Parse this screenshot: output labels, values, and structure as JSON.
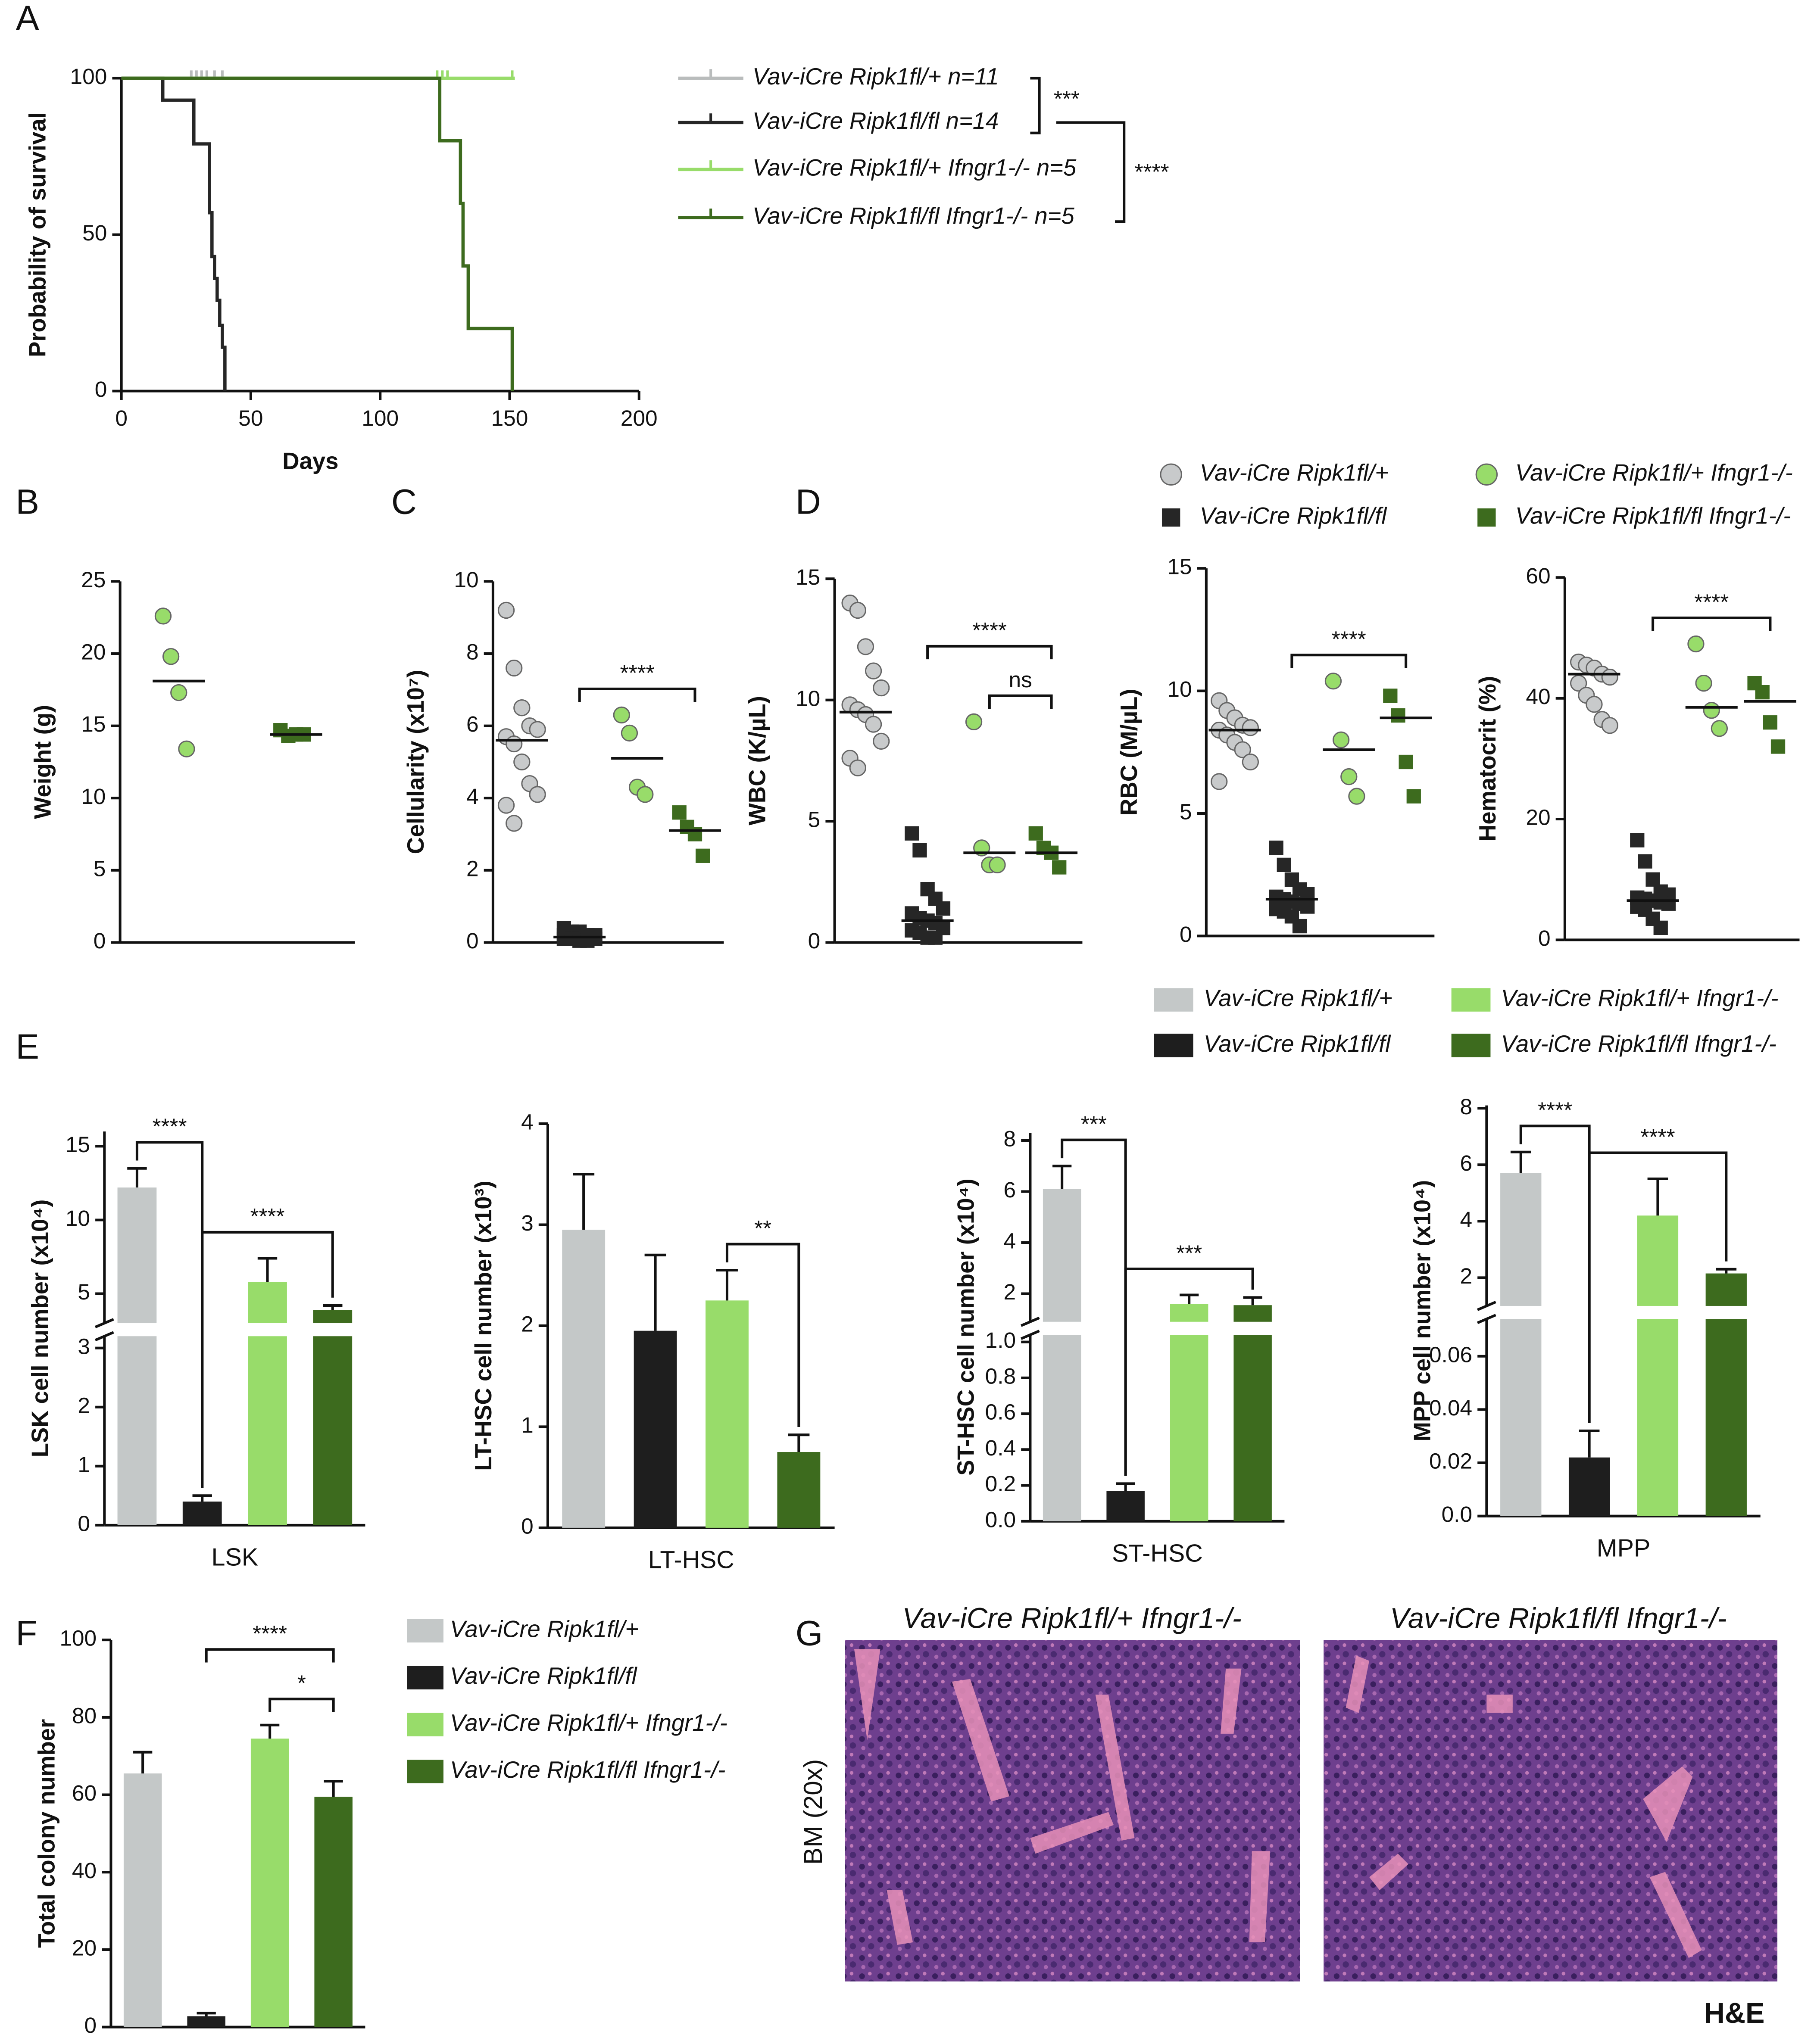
{
  "panel_labels": [
    "A",
    "B",
    "C",
    "D",
    "E",
    "F",
    "G"
  ],
  "dot_legend": [
    {
      "name": "Vav-iCre Ripk1fl/+",
      "color": "#c8cacb",
      "shape": "circle"
    },
    {
      "name": "Vav-iCre Ripk1fl/fl",
      "color": "#262626",
      "shape": "square"
    },
    {
      "name": "Vav-iCre Ripk1fl/+ Ifngr1-/-",
      "color": "#98dc6a",
      "shape": "circle"
    },
    {
      "name": "Vav-iCre Ripk1fl/fl Ifngr1-/-",
      "color": "#3d6b1e",
      "shape": "square"
    }
  ],
  "bar_legend": [
    {
      "name": "Vav-iCre Ripk1fl/+",
      "color": "#c4c8c8"
    },
    {
      "name": "Vav-iCre Ripk1fl/fl",
      "color": "#1e1e1e"
    },
    {
      "name": "Vav-iCre Ripk1fl/+ Ifngr1-/-",
      "color": "#98dc6a"
    },
    {
      "name": "Vav-iCre Ripk1fl/fl Ifngr1-/-",
      "color": "#3d6b1e"
    }
  ],
  "histology": {
    "titles": [
      "Vav-iCre Ripk1fl/+ Ifngr1-/-",
      "Vav-iCre Ripk1fl/fl Ifngr1-/-"
    ],
    "side_label": "BM (20x)",
    "stain": "H&E"
  },
  "chart_data": [
    {
      "type": "survival",
      "xlabel": "Days",
      "ylabel": "Probability of survival",
      "xlim": [
        0,
        200
      ],
      "xticks": [
        0,
        50,
        100,
        150,
        200
      ],
      "ylim": [
        0,
        100
      ],
      "yticks": [
        0,
        50,
        100
      ],
      "series": [
        {
          "name": "Vav-iCre Ripk1fl/+ n=11",
          "color": "#b9bcbc",
          "x": [
            0,
            40
          ],
          "values": [
            100,
            100
          ],
          "censor_x": [
            27,
            29,
            31,
            33,
            36,
            39
          ]
        },
        {
          "name": "Vav-iCre Ripk1fl/fl n=14",
          "color": "#262626",
          "x": [
            0,
            16,
            16,
            28,
            28,
            34,
            34,
            35,
            35,
            36,
            36,
            37,
            37,
            38,
            38,
            39,
            39,
            40,
            40
          ],
          "values": [
            100,
            100,
            93,
            93,
            79,
            79,
            57,
            57,
            43,
            43,
            36,
            36,
            29,
            29,
            21,
            21,
            14,
            14,
            0
          ],
          "censor_x": []
        },
        {
          "name": "Vav-iCre Ripk1fl/+ Ifngr1-/- n=5",
          "color": "#98dc6a",
          "x": [
            0,
            152
          ],
          "values": [
            100,
            100
          ],
          "censor_x": [
            122,
            124,
            126,
            151
          ]
        },
        {
          "name": "Vav-iCre Ripk1fl/fl Ifngr1-/- n=5",
          "color": "#3d6b1e",
          "x": [
            0,
            123,
            123,
            131,
            131,
            132,
            132,
            134,
            134,
            151,
            151
          ],
          "values": [
            100,
            100,
            80,
            80,
            60,
            60,
            40,
            40,
            20,
            20,
            0
          ],
          "censor_x": []
        }
      ],
      "annotations": [
        "***",
        "****"
      ]
    },
    {
      "type": "dot",
      "ylabel": "Weight (g)",
      "ylim": [
        0,
        25
      ],
      "yticks": [
        0,
        5,
        10,
        15,
        20,
        25
      ],
      "series": [
        {
          "color": "#98dc6a",
          "shape": "circle",
          "values": [
            22.6,
            19.8,
            17.3,
            13.4
          ],
          "median": 18.1
        },
        {
          "color": "#3d6b1e",
          "shape": "square",
          "values": [
            14.7,
            14.3,
            14.4,
            14.4
          ],
          "median": 14.4
        }
      ],
      "brackets": []
    },
    {
      "type": "dot",
      "ylabel": "Cellularity (x10⁷)",
      "ylim": [
        0,
        10
      ],
      "yticks": [
        0,
        2,
        4,
        6,
        8,
        10
      ],
      "series": [
        {
          "color": "#c8cacb",
          "shape": "circle",
          "values": [
            9.2,
            7.6,
            6.5,
            6.0,
            5.9,
            5.7,
            5.5,
            5.0,
            4.4,
            4.1,
            3.8,
            3.3
          ],
          "median": 5.6
        },
        {
          "color": "#262626",
          "shape": "square",
          "values": [
            0.4,
            0.3,
            0.3,
            0.2,
            0.2,
            0.2,
            0.1,
            0.1,
            0.1,
            0.1,
            0.1,
            0.1,
            0.05,
            0.05
          ],
          "median": 0.15
        },
        {
          "color": "#98dc6a",
          "shape": "circle",
          "values": [
            6.3,
            5.8,
            4.3,
            4.1
          ],
          "median": 5.1
        },
        {
          "color": "#3d6b1e",
          "shape": "square",
          "values": [
            3.6,
            3.2,
            3.0,
            2.4
          ],
          "median": 3.1
        }
      ],
      "brackets": [
        {
          "between": [
            1,
            3
          ],
          "label": "****"
        }
      ]
    },
    {
      "type": "dot",
      "ylabel": "WBC (K/µL)",
      "ylim": [
        0,
        15
      ],
      "yticks": [
        0,
        5,
        10,
        15
      ],
      "series": [
        {
          "color": "#c8cacb",
          "shape": "circle",
          "values": [
            14,
            13.7,
            12.2,
            11.2,
            10.5,
            9.8,
            9.6,
            9.4,
            9,
            8.3,
            7.6,
            7.2
          ],
          "median": 9.5
        },
        {
          "color": "#262626",
          "shape": "square",
          "values": [
            4.5,
            3.8,
            2.2,
            1.8,
            1.4,
            1.2,
            1.0,
            0.9,
            0.8,
            0.6,
            0.5,
            0.4,
            0.2,
            0.2
          ],
          "median": 0.9
        },
        {
          "color": "#98dc6a",
          "shape": "circle",
          "values": [
            9.1,
            3.9,
            3.2,
            3.2
          ],
          "median": 3.7
        },
        {
          "color": "#3d6b1e",
          "shape": "square",
          "values": [
            4.5,
            3.9,
            3.7,
            3.1
          ],
          "median": 3.7
        }
      ],
      "brackets": [
        {
          "between": [
            1,
            3
          ],
          "label": "****"
        },
        {
          "between": [
            2,
            3
          ],
          "label": "ns"
        }
      ]
    },
    {
      "type": "dot",
      "ylabel": "RBC (M/µL)",
      "ylim": [
        0,
        15
      ],
      "yticks": [
        0,
        5,
        10,
        15
      ],
      "series": [
        {
          "color": "#c8cacb",
          "shape": "circle",
          "values": [
            9.6,
            9.2,
            8.9,
            8.6,
            8.5,
            8.4,
            8.2,
            7.9,
            7.6,
            7.1,
            6.3
          ],
          "median": 8.4
        },
        {
          "color": "#262626",
          "shape": "square",
          "values": [
            3.6,
            2.9,
            2.3,
            1.9,
            1.7,
            1.6,
            1.5,
            1.4,
            1.3,
            1.2,
            1.1,
            1.0,
            0.8,
            0.4
          ],
          "median": 1.5
        },
        {
          "color": "#98dc6a",
          "shape": "circle",
          "values": [
            10.4,
            8.0,
            6.5,
            5.7
          ],
          "median": 7.6
        },
        {
          "color": "#3d6b1e",
          "shape": "square",
          "values": [
            9.8,
            9.0,
            7.1,
            5.7
          ],
          "median": 8.9
        }
      ],
      "brackets": [
        {
          "between": [
            1,
            3
          ],
          "label": "****"
        }
      ]
    },
    {
      "type": "dot",
      "ylabel": "Hematocrit (%)",
      "ylim": [
        0,
        60
      ],
      "yticks": [
        0,
        20,
        40,
        60
      ],
      "series": [
        {
          "color": "#c8cacb",
          "shape": "circle",
          "values": [
            46,
            45.5,
            45,
            44,
            43.5,
            42.5,
            40.5,
            39,
            36.5,
            35.5
          ],
          "median": 44
        },
        {
          "color": "#262626",
          "shape": "square",
          "values": [
            16.5,
            13,
            10,
            8,
            7.5,
            7,
            6.8,
            6.5,
            6.2,
            6,
            5.5,
            5,
            3.5,
            2
          ],
          "median": 6.5
        },
        {
          "color": "#98dc6a",
          "shape": "circle",
          "values": [
            49,
            42.5,
            38,
            35
          ],
          "median": 38.5
        },
        {
          "color": "#3d6b1e",
          "shape": "square",
          "values": [
            42.5,
            41,
            36,
            32
          ],
          "median": 39.5
        }
      ],
      "brackets": [
        {
          "between": [
            1,
            3
          ],
          "label": "****"
        }
      ]
    },
    {
      "type": "bar",
      "ylabel": "LSK cell number (x10⁴)",
      "xlabel": "LSK",
      "axis_segments": [
        {
          "ylim": [
            0,
            3.2
          ],
          "yticks": [
            0,
            1,
            2,
            3
          ]
        },
        {
          "ylim": [
            3,
            16
          ],
          "yticks": [
            5,
            10,
            15
          ]
        }
      ],
      "series": [
        {
          "color": "#c4c8c8",
          "value": 12.2,
          "error": 1.3
        },
        {
          "color": "#1e1e1e",
          "value": 0.4,
          "error": 0.1
        },
        {
          "color": "#98dc6a",
          "value": 5.8,
          "error": 1.6
        },
        {
          "color": "#3d6b1e",
          "value": 3.9,
          "error": 0.3
        }
      ],
      "brackets": [
        {
          "between": [
            0,
            1
          ],
          "label": "****"
        },
        {
          "between": [
            1,
            3
          ],
          "label": "****"
        }
      ]
    },
    {
      "type": "bar",
      "ylabel": "LT-HSC cell number (x10³)",
      "xlabel": "LT-HSC",
      "ylim": [
        0,
        4
      ],
      "yticks": [
        0,
        1,
        2,
        3,
        4
      ],
      "series": [
        {
          "color": "#c4c8c8",
          "value": 2.95,
          "error": 0.55
        },
        {
          "color": "#1e1e1e",
          "value": 1.95,
          "error": 0.75
        },
        {
          "color": "#98dc6a",
          "value": 2.25,
          "error": 0.3
        },
        {
          "color": "#3d6b1e",
          "value": 0.75,
          "error": 0.17
        }
      ],
      "brackets": [
        {
          "between": [
            2,
            3
          ],
          "label": "**"
        }
      ]
    },
    {
      "type": "bar",
      "ylabel": "ST-HSC cell number (x10⁴)",
      "xlabel": "ST-HSC",
      "axis_segments": [
        {
          "ylim": [
            0,
            1.04
          ],
          "yticks": [
            {
              "value": 0,
              "label": "0.0"
            },
            0.2,
            0.4,
            0.6,
            0.8,
            {
              "value": 1,
              "label": "1.0"
            }
          ]
        },
        {
          "ylim": [
            0.9,
            8.3
          ],
          "yticks": [
            2,
            4,
            6,
            8
          ]
        }
      ],
      "series": [
        {
          "color": "#c4c8c8",
          "value": 6.1,
          "error": 0.9
        },
        {
          "color": "#1e1e1e",
          "value": 0.17,
          "error": 0.04
        },
        {
          "color": "#98dc6a",
          "value": 1.6,
          "error": 0.35
        },
        {
          "color": "#3d6b1e",
          "value": 1.55,
          "error": 0.3
        }
      ],
      "brackets": [
        {
          "between": [
            0,
            1
          ],
          "label": "***"
        },
        {
          "between": [
            1,
            3
          ],
          "label": "***"
        }
      ]
    },
    {
      "type": "bar",
      "ylabel": "MPP cell number (x10⁴)",
      "xlabel": "MPP",
      "axis_segments": [
        {
          "ylim": [
            0,
            0.074
          ],
          "yticks": [
            {
              "value": 0,
              "label": "0.0"
            },
            0.02,
            0.04,
            0.06
          ]
        },
        {
          "ylim": [
            1,
            8.1
          ],
          "yticks": [
            2,
            4,
            6,
            8
          ]
        }
      ],
      "series": [
        {
          "color": "#c4c8c8",
          "value": 5.7,
          "error": 0.75
        },
        {
          "color": "#1e1e1e",
          "value": 0.022,
          "error": 0.01
        },
        {
          "color": "#98dc6a",
          "value": 4.2,
          "error": 1.3
        },
        {
          "color": "#3d6b1e",
          "value": 2.15,
          "error": 0.15
        }
      ],
      "brackets": [
        {
          "between": [
            0,
            1
          ],
          "label": "****"
        },
        {
          "between": [
            1,
            3
          ],
          "label": "****"
        }
      ]
    },
    {
      "type": "bar",
      "ylabel": "Total colony number",
      "ylim": [
        0,
        100
      ],
      "yticks": [
        0,
        20,
        40,
        60,
        80,
        100
      ],
      "series": [
        {
          "name": "Vav-iCre Ripk1fl/+",
          "color": "#c4c8c8",
          "value": 65.5,
          "error": 5.5
        },
        {
          "name": "Vav-iCre Ripk1fl/fl",
          "color": "#1e1e1e",
          "value": 2.8,
          "error": 0.8
        },
        {
          "name": "Vav-iCre Ripk1fl/+ Ifngr1-/-",
          "color": "#98dc6a",
          "value": 74.5,
          "error": 3.5
        },
        {
          "name": "Vav-iCre Ripk1fl/fl Ifngr1-/-",
          "color": "#3d6b1e",
          "value": 59.5,
          "error": 4
        }
      ],
      "brackets": [
        {
          "between": [
            1,
            3
          ],
          "label": "****"
        },
        {
          "between": [
            2,
            3
          ],
          "label": "*"
        }
      ]
    }
  ]
}
